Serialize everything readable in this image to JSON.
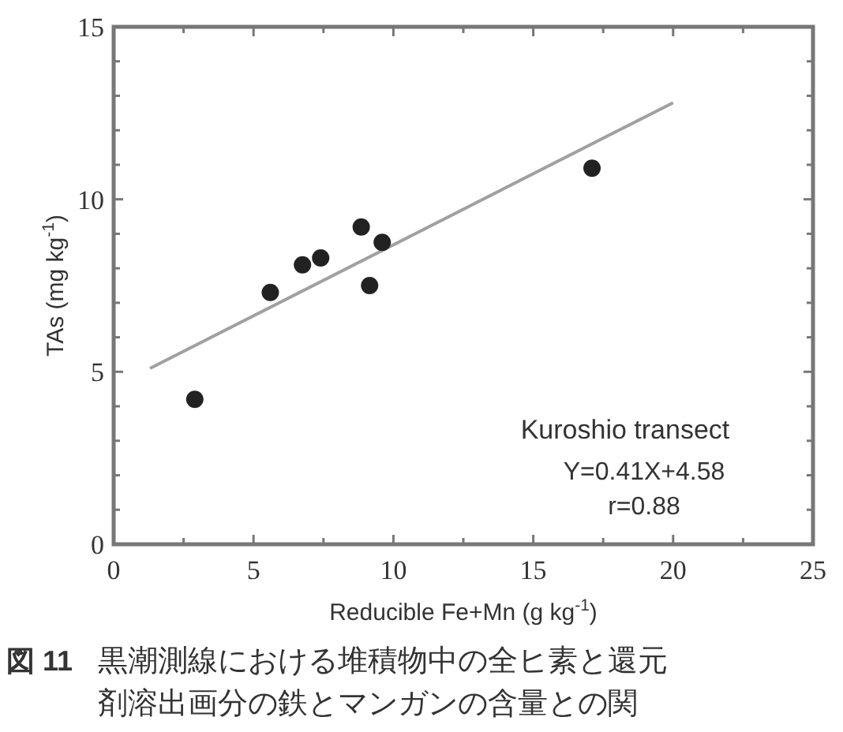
{
  "chart_data": {
    "type": "scatter",
    "xlabel": "Reducible Fe+Mn (g kg$^{-1}$)",
    "ylabel": "TAs (mg kg$^{-1}$)",
    "xlim": [
      0,
      25
    ],
    "ylim": [
      0,
      15
    ],
    "xticks": [
      0,
      {
        "value": 2.5,
        "label": null
      },
      5,
      {
        "value": 7.5,
        "label": null
      },
      10,
      {
        "value": 12.5,
        "label": null
      },
      15,
      {
        "value": 17.5,
        "label": null
      },
      20,
      {
        "value": 22.5,
        "label": null
      },
      25
    ],
    "yticks": [
      0,
      {
        "value": 1,
        "label": null
      },
      {
        "value": 2,
        "label": null
      },
      {
        "value": 3,
        "label": null
      },
      {
        "value": 4,
        "label": null
      },
      5,
      {
        "value": 6,
        "label": null
      },
      {
        "value": 7,
        "label": null
      },
      {
        "value": 8,
        "label": null
      },
      {
        "value": 9,
        "label": null
      },
      10,
      {
        "value": 11,
        "label": null
      },
      {
        "value": 12,
        "label": null
      },
      {
        "value": 13,
        "label": null
      },
      {
        "value": 14,
        "label": null
      },
      15
    ],
    "series": [
      {
        "marker": "circle",
        "color": "#222222",
        "x": [
          2.9,
          5.6,
          6.75,
          7.4,
          8.85,
          9.6,
          9.15,
          17.1
        ],
        "values": [
          4.2,
          7.3,
          8.1,
          8.3,
          9.2,
          8.75,
          7.5,
          10.9
        ]
      },
      {
        "type": "line",
        "color": "#a0a0a0",
        "x": [
          1.3,
          20.0
        ],
        "values": [
          5.1,
          12.8
        ]
      }
    ],
    "annotations": [
      "Kuroshio transect",
      "Y=0.41X+4.58",
      "r=0.88",
      "図 11",
      "黒潮測線における堆積物中の全ヒ素と還元",
      "剤溶出画分の鉄とマンガンの含量との関"
    ]
  }
}
